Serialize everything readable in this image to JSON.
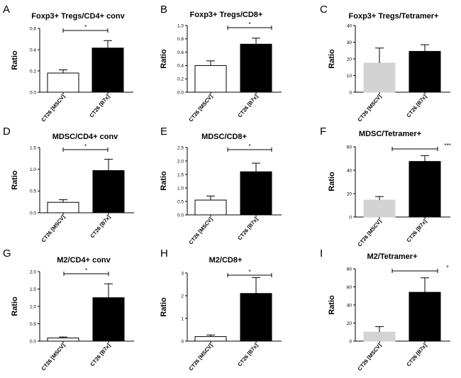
{
  "colors": {
    "white_bar": "#ffffff",
    "black_bar": "#000000",
    "grey_bar": "#d3d3d3",
    "axis": "#000000"
  },
  "chart_data": [
    {
      "type": "bar",
      "panel": "A",
      "title": "Foxp3+ Tregs/CD4+ conv",
      "ylabel": "Ratio",
      "ylim": [
        0,
        0.6
      ],
      "yticks": [
        "0.0",
        "0.2",
        "0.4",
        "0.6"
      ],
      "categories": [
        "CT26 [MSCV]",
        "CT26 [B7x]"
      ],
      "values": [
        0.18,
        0.415
      ],
      "errors": [
        0.03,
        0.07
      ],
      "fills": [
        "white",
        "black"
      ],
      "significance": "*"
    },
    {
      "type": "bar",
      "panel": "B",
      "title": "Foxp3+ Tregs/CD8+",
      "ylabel": "Ratio",
      "ylim": [
        0,
        1.0
      ],
      "yticks": [
        "0.0",
        "0.2",
        "0.4",
        "0.6",
        "0.8",
        "1.0"
      ],
      "categories": [
        "CT26 [MSCV]",
        "CT26 [B7x]"
      ],
      "values": [
        0.4,
        0.72
      ],
      "errors": [
        0.07,
        0.09
      ],
      "fills": [
        "white",
        "black"
      ],
      "significance": "*"
    },
    {
      "type": "bar",
      "panel": "C",
      "title": "Foxp3+ Tregs/Tetramer+",
      "ylabel": "Ratio",
      "ylim": [
        0,
        40
      ],
      "yticks": [
        "0",
        "10",
        "20",
        "30",
        "40"
      ],
      "categories": [
        "CT26 [MSCV]",
        "CT26 [B7x]"
      ],
      "values": [
        17.5,
        24.5
      ],
      "errors": [
        9.0,
        4.0
      ],
      "fills": [
        "grey",
        "black"
      ],
      "significance": ""
    },
    {
      "type": "bar",
      "panel": "D",
      "title": "MDSC/CD4+ conv",
      "ylabel": "Ratio",
      "ylim": [
        0,
        1.5
      ],
      "yticks": [
        "0.0",
        "0.5",
        "1.0",
        "1.5"
      ],
      "categories": [
        "CT26 [MSCV]",
        "CT26 [B7x]"
      ],
      "values": [
        0.24,
        0.97
      ],
      "errors": [
        0.06,
        0.26
      ],
      "fills": [
        "white",
        "black"
      ],
      "significance": "*"
    },
    {
      "type": "bar",
      "panel": "E",
      "title": "MDSC/CD8+",
      "ylabel": "Ratio",
      "ylim": [
        0,
        2.5
      ],
      "yticks": [
        "0.0",
        "0.5",
        "1.0",
        "1.5",
        "2.0",
        "2.5"
      ],
      "categories": [
        "CT26 [MSCV]",
        "CT26 [B7x]"
      ],
      "values": [
        0.55,
        1.6
      ],
      "errors": [
        0.15,
        0.32
      ],
      "fills": [
        "white",
        "black"
      ],
      "significance": "*"
    },
    {
      "type": "bar",
      "panel": "F",
      "title": "MDSC/Tetramer+",
      "ylabel": "Ratio",
      "ylim": [
        0,
        60
      ],
      "yticks": [
        "0",
        "20",
        "40",
        "60"
      ],
      "categories": [
        "CT26 [MSCV]",
        "CT26 [B7x]"
      ],
      "values": [
        14.5,
        47.5
      ],
      "errors": [
        3.0,
        5.0
      ],
      "fills": [
        "grey",
        "black"
      ],
      "significance": "***"
    },
    {
      "type": "bar",
      "panel": "G",
      "title": "M2/CD4+ conv",
      "ylabel": "Ratio",
      "ylim": [
        0,
        2.0
      ],
      "yticks": [
        "0.0",
        "0.5",
        "1.0",
        "1.5",
        "2.0"
      ],
      "categories": [
        "CT26 [MSCV]",
        "CT26 [B7x]"
      ],
      "values": [
        0.09,
        1.25
      ],
      "errors": [
        0.03,
        0.4
      ],
      "fills": [
        "white",
        "black"
      ],
      "significance": "*"
    },
    {
      "type": "bar",
      "panel": "H",
      "title": "M2/CD8+",
      "ylabel": "Ratio",
      "ylim": [
        0,
        3
      ],
      "yticks": [
        "0",
        "1",
        "2",
        "3"
      ],
      "categories": [
        "CT26 [MSCV]",
        "CT26 [B7x]"
      ],
      "values": [
        0.2,
        2.1
      ],
      "errors": [
        0.07,
        0.7
      ],
      "fills": [
        "white",
        "black"
      ],
      "significance": "*"
    },
    {
      "type": "bar",
      "panel": "I",
      "title": "M2/Tetramer+",
      "ylabel": "Ratio",
      "ylim": [
        0,
        80
      ],
      "yticks": [
        "0",
        "20",
        "40",
        "60",
        "80"
      ],
      "categories": [
        "CT26 [MSCV]",
        "CT26 [B7x]"
      ],
      "values": [
        10,
        54
      ],
      "errors": [
        6,
        16
      ],
      "fills": [
        "grey",
        "black"
      ],
      "significance": "*"
    }
  ]
}
